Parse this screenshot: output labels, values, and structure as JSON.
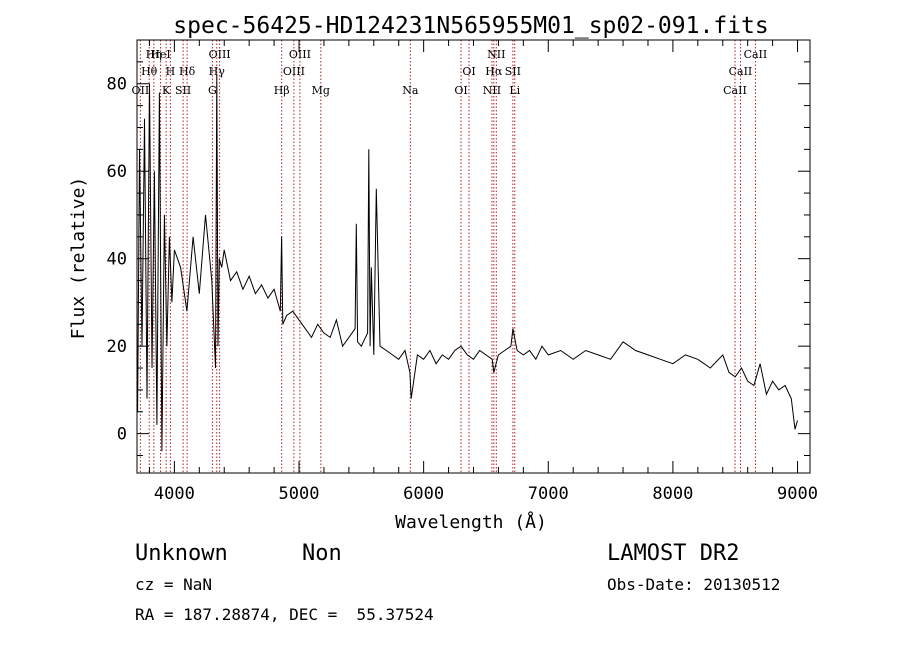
{
  "chart_data": {
    "type": "line",
    "title": "spec-56425-HD124231N565955M01_sp02-091.fits",
    "xlabel": "Wavelength (Å)",
    "ylabel": "Flux (relative)",
    "xlim": [
      3700,
      9100
    ],
    "ylim": [
      -9,
      90
    ],
    "x_ticks": [
      4000,
      5000,
      6000,
      7000,
      8000,
      9000
    ],
    "x_tick_labels": [
      "4000",
      "5000",
      "6000",
      "7000",
      "8000",
      "9000"
    ],
    "y_ticks": [
      0,
      20,
      40,
      60,
      80
    ],
    "y_tick_labels": [
      "0",
      "20",
      "40",
      "60",
      "80"
    ],
    "series": [
      {
        "name": "flux",
        "x": [
          3705,
          3720,
          3740,
          3760,
          3780,
          3800,
          3820,
          3840,
          3860,
          3880,
          3900,
          3920,
          3940,
          3960,
          3980,
          4000,
          4050,
          4100,
          4150,
          4200,
          4250,
          4300,
          4330,
          4340,
          4350,
          4360,
          4380,
          4400,
          4450,
          4500,
          4550,
          4600,
          4650,
          4700,
          4750,
          4800,
          4850,
          4860,
          4870,
          4900,
          4950,
          5000,
          5050,
          5100,
          5150,
          5200,
          5250,
          5300,
          5350,
          5400,
          5450,
          5460,
          5470,
          5500,
          5550,
          5560,
          5570,
          5580,
          5600,
          5620,
          5650,
          5700,
          5750,
          5800,
          5850,
          5890,
          5900,
          5950,
          6000,
          6050,
          6100,
          6150,
          6200,
          6250,
          6300,
          6350,
          6400,
          6450,
          6500,
          6550,
          6563,
          6600,
          6650,
          6700,
          6716,
          6750,
          6800,
          6850,
          6900,
          6950,
          7000,
          7100,
          7200,
          7300,
          7400,
          7500,
          7600,
          7700,
          7800,
          7900,
          8000,
          8100,
          8200,
          8300,
          8400,
          8450,
          8500,
          8550,
          8600,
          8650,
          8700,
          8750,
          8800,
          8850,
          8900,
          8950,
          8980,
          9000
        ],
        "y": [
          5,
          65,
          20,
          72,
          8,
          80,
          15,
          60,
          2,
          78,
          -4,
          50,
          20,
          45,
          30,
          42,
          38,
          28,
          45,
          32,
          50,
          35,
          15,
          82,
          20,
          40,
          38,
          42,
          35,
          37,
          33,
          36,
          32,
          34,
          31,
          33,
          28,
          45,
          25,
          27,
          28,
          26,
          24,
          22,
          25,
          23,
          22,
          26,
          20,
          22,
          24,
          48,
          21,
          20,
          23,
          65,
          20,
          38,
          18,
          56,
          20,
          19,
          18,
          17,
          19,
          14,
          8,
          18,
          17,
          19,
          16,
          18,
          17,
          19,
          20,
          18,
          17,
          19,
          18,
          17,
          14,
          18,
          19,
          20,
          24,
          19,
          18,
          19,
          17,
          20,
          18,
          19,
          17,
          19,
          18,
          17,
          21,
          19,
          18,
          17,
          16,
          18,
          17,
          15,
          18,
          14,
          13,
          15,
          12,
          11,
          16,
          9,
          12,
          10,
          11,
          8,
          1,
          3
        ]
      }
    ],
    "lines": [
      {
        "label": "OII",
        "x": 3727
      },
      {
        "label": "Hθ",
        "x": 3798
      },
      {
        "label": "Hη",
        "x": 3835
      },
      {
        "label": "HeI",
        "x": 3889
      },
      {
        "label": "K",
        "x": 3934
      },
      {
        "label": "H",
        "x": 3968
      },
      {
        "label": "SII",
        "x": 4070
      },
      {
        "label": "Hδ",
        "x": 4102
      },
      {
        "label": "G",
        "x": 4305
      },
      {
        "label": "Hγ",
        "x": 4340
      },
      {
        "label": "OIII",
        "x": 4363
      },
      {
        "label": "Hβ",
        "x": 4861
      },
      {
        "label": "OIII",
        "x": 4959
      },
      {
        "label": "OIII",
        "x": 5007
      },
      {
        "label": "Mg",
        "x": 5175
      },
      {
        "label": "Na",
        "x": 5893
      },
      {
        "label": "OI",
        "x": 6300
      },
      {
        "label": "OI",
        "x": 6364
      },
      {
        "label": "NII",
        "x": 6548
      },
      {
        "label": "Hα",
        "x": 6563
      },
      {
        "label": "NII",
        "x": 6583
      },
      {
        "label": "SII",
        "x": 6716
      },
      {
        "label": "Li",
        "x": 6731
      },
      {
        "label": "CaII",
        "x": 8498
      },
      {
        "label": "CaII",
        "x": 8542
      },
      {
        "label": "CaII",
        "x": 8662
      }
    ]
  },
  "info": {
    "object_class": "Unknown",
    "subclass": "Non",
    "survey": "LAMOST DR2",
    "cz": "cz = NaN",
    "obs_date": "Obs-Date: 20130512",
    "coords": "RA = 187.28874, DEC =  55.37524"
  },
  "colors": {
    "axes": "#000000",
    "spectrum": "#000000",
    "lines": "#b22222",
    "background": "#ffffff"
  }
}
